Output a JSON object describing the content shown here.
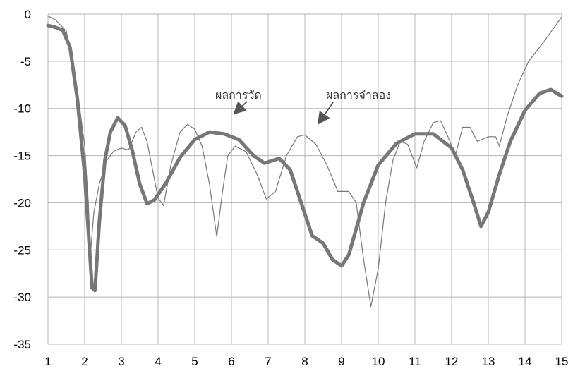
{
  "chart_data": {
    "type": "line",
    "title": "",
    "xlabel": "",
    "ylabel": "",
    "xlim": [
      1,
      15
    ],
    "ylim": [
      -35,
      0
    ],
    "x_ticks": [
      "1",
      "2",
      "3",
      "4",
      "5",
      "6",
      "7",
      "8",
      "9",
      "10",
      "11",
      "12",
      "13",
      "14",
      "15"
    ],
    "y_ticks": [
      "0",
      "-5",
      "-10",
      "-15",
      "-20",
      "-25",
      "-30",
      "-35"
    ],
    "grid": true,
    "annotations": [
      {
        "text": "ผลการวัด",
        "target_series": 0
      },
      {
        "text": "ผลการจำลอง",
        "target_series": 1
      }
    ],
    "series": [
      {
        "name": "ผลการวัด",
        "color": "#777777",
        "style": "thick",
        "points": [
          [
            1.0,
            -1.2
          ],
          [
            1.2,
            -1.4
          ],
          [
            1.4,
            -1.7
          ],
          [
            1.6,
            -3.5
          ],
          [
            1.8,
            -9.0
          ],
          [
            2.0,
            -17.0
          ],
          [
            2.1,
            -23.0
          ],
          [
            2.2,
            -29.0
          ],
          [
            2.28,
            -29.3
          ],
          [
            2.4,
            -22.0
          ],
          [
            2.55,
            -15.5
          ],
          [
            2.7,
            -12.5
          ],
          [
            2.9,
            -11.0
          ],
          [
            3.1,
            -11.8
          ],
          [
            3.3,
            -14.5
          ],
          [
            3.5,
            -18.0
          ],
          [
            3.7,
            -20.1
          ],
          [
            3.9,
            -19.7
          ],
          [
            4.2,
            -18.0
          ],
          [
            4.6,
            -15.2
          ],
          [
            5.0,
            -13.3
          ],
          [
            5.4,
            -12.5
          ],
          [
            5.8,
            -12.7
          ],
          [
            6.2,
            -13.3
          ],
          [
            6.6,
            -15.0
          ],
          [
            6.9,
            -15.8
          ],
          [
            7.3,
            -15.3
          ],
          [
            7.6,
            -16.5
          ],
          [
            7.9,
            -20.0
          ],
          [
            8.2,
            -23.5
          ],
          [
            8.5,
            -24.3
          ],
          [
            8.75,
            -26.0
          ],
          [
            9.0,
            -26.7
          ],
          [
            9.2,
            -25.5
          ],
          [
            9.6,
            -20.0
          ],
          [
            10.0,
            -16.0
          ],
          [
            10.5,
            -13.7
          ],
          [
            11.0,
            -12.7
          ],
          [
            11.5,
            -12.7
          ],
          [
            12.0,
            -14.2
          ],
          [
            12.3,
            -16.5
          ],
          [
            12.6,
            -20.0
          ],
          [
            12.8,
            -22.5
          ],
          [
            13.0,
            -21.0
          ],
          [
            13.3,
            -17.0
          ],
          [
            13.6,
            -13.5
          ],
          [
            14.0,
            -10.2
          ],
          [
            14.4,
            -8.4
          ],
          [
            14.7,
            -8.0
          ],
          [
            15.0,
            -8.7
          ]
        ]
      },
      {
        "name": "ผลการจำลอง",
        "color": "#777777",
        "style": "thin",
        "points": [
          [
            1.0,
            -0.2
          ],
          [
            1.2,
            -0.6
          ],
          [
            1.5,
            -1.8
          ],
          [
            1.8,
            -8.0
          ],
          [
            2.0,
            -14.0
          ],
          [
            2.1,
            -20.0
          ],
          [
            2.15,
            -25.8
          ],
          [
            2.25,
            -21.0
          ],
          [
            2.4,
            -18.0
          ],
          [
            2.6,
            -15.5
          ],
          [
            2.8,
            -14.5
          ],
          [
            3.0,
            -14.2
          ],
          [
            3.2,
            -14.4
          ],
          [
            3.4,
            -12.5
          ],
          [
            3.55,
            -12.0
          ],
          [
            3.7,
            -13.5
          ],
          [
            3.85,
            -16.5
          ],
          [
            4.0,
            -19.5
          ],
          [
            4.15,
            -20.3
          ],
          [
            4.35,
            -16.0
          ],
          [
            4.6,
            -12.5
          ],
          [
            4.8,
            -11.7
          ],
          [
            5.0,
            -12.2
          ],
          [
            5.2,
            -14.0
          ],
          [
            5.4,
            -18.0
          ],
          [
            5.6,
            -23.6
          ],
          [
            5.75,
            -19.0
          ],
          [
            5.9,
            -15.0
          ],
          [
            6.1,
            -14.0
          ],
          [
            6.4,
            -14.6
          ],
          [
            6.7,
            -17.0
          ],
          [
            6.95,
            -19.6
          ],
          [
            7.2,
            -18.8
          ],
          [
            7.5,
            -15.0
          ],
          [
            7.8,
            -13.0
          ],
          [
            8.0,
            -12.8
          ],
          [
            8.3,
            -13.8
          ],
          [
            8.6,
            -16.0
          ],
          [
            8.9,
            -18.8
          ],
          [
            9.2,
            -18.8
          ],
          [
            9.4,
            -20.0
          ],
          [
            9.6,
            -26.0
          ],
          [
            9.8,
            -31.0
          ],
          [
            10.0,
            -27.0
          ],
          [
            10.2,
            -20.0
          ],
          [
            10.4,
            -15.5
          ],
          [
            10.6,
            -13.5
          ],
          [
            10.8,
            -13.8
          ],
          [
            11.05,
            -16.3
          ],
          [
            11.25,
            -13.5
          ],
          [
            11.5,
            -11.5
          ],
          [
            11.7,
            -11.3
          ],
          [
            11.9,
            -13.0
          ],
          [
            12.1,
            -15.0
          ],
          [
            12.3,
            -12.0
          ],
          [
            12.5,
            -12.0
          ],
          [
            12.7,
            -13.5
          ],
          [
            13.0,
            -13.0
          ],
          [
            13.2,
            -13.0
          ],
          [
            13.3,
            -14.0
          ],
          [
            13.5,
            -11.0
          ],
          [
            13.8,
            -7.5
          ],
          [
            14.1,
            -5.0
          ],
          [
            14.5,
            -3.0
          ],
          [
            15.0,
            -0.3
          ]
        ]
      }
    ]
  }
}
